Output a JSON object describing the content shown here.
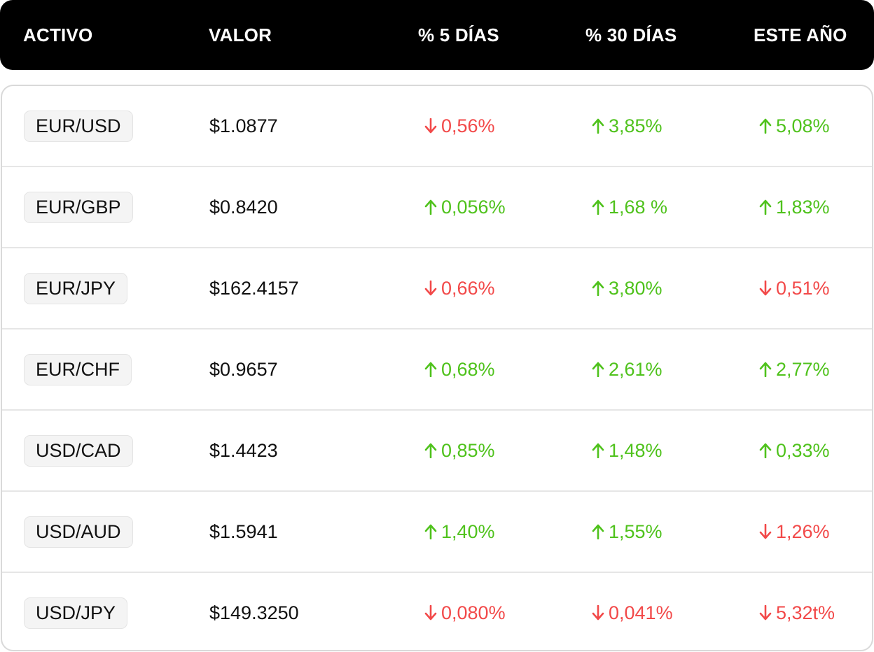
{
  "colors": {
    "up": "#4fc21c",
    "down": "#f24949",
    "header_bg": "#000000"
  },
  "headers": [
    "ACTIVO",
    "VALOR",
    "% 5 DÍAS",
    "% 30 DÍAS",
    "ESTE AÑO"
  ],
  "rows": [
    {
      "asset": "EUR/USD",
      "value": "$1.0877",
      "d5": {
        "text": "0,56%",
        "dir": "down"
      },
      "d30": {
        "text": "3,85%",
        "dir": "up"
      },
      "ytd": {
        "text": "5,08%",
        "dir": "up"
      }
    },
    {
      "asset": "EUR/GBP",
      "value": "$0.8420",
      "d5": {
        "text": "0,056%",
        "dir": "up"
      },
      "d30": {
        "text": "1,68 %",
        "dir": "up"
      },
      "ytd": {
        "text": "1,83%",
        "dir": "up"
      }
    },
    {
      "asset": "EUR/JPY",
      "value": "$162.4157",
      "d5": {
        "text": "0,66%",
        "dir": "down"
      },
      "d30": {
        "text": "3,80%",
        "dir": "up"
      },
      "ytd": {
        "text": "0,51%",
        "dir": "down"
      }
    },
    {
      "asset": "EUR/CHF",
      "value": "$0.9657",
      "d5": {
        "text": "0,68%",
        "dir": "up"
      },
      "d30": {
        "text": "2,61%",
        "dir": "up"
      },
      "ytd": {
        "text": "2,77%",
        "dir": "up"
      }
    },
    {
      "asset": "USD/CAD",
      "value": "$1.4423",
      "d5": {
        "text": "0,85%",
        "dir": "up"
      },
      "d30": {
        "text": "1,48%",
        "dir": "up"
      },
      "ytd": {
        "text": "0,33%",
        "dir": "up"
      }
    },
    {
      "asset": "USD/AUD",
      "value": "$1.5941",
      "d5": {
        "text": "1,40%",
        "dir": "up"
      },
      "d30": {
        "text": "1,55%",
        "dir": "up"
      },
      "ytd": {
        "text": "1,26%",
        "dir": "down"
      }
    },
    {
      "asset": "USD/JPY",
      "value": "$149.3250",
      "d5": {
        "text": "0,080%",
        "dir": "down"
      },
      "d30": {
        "text": "0,041%",
        "dir": "down"
      },
      "ytd": {
        "text": "5,32t%",
        "dir": "down"
      }
    }
  ]
}
